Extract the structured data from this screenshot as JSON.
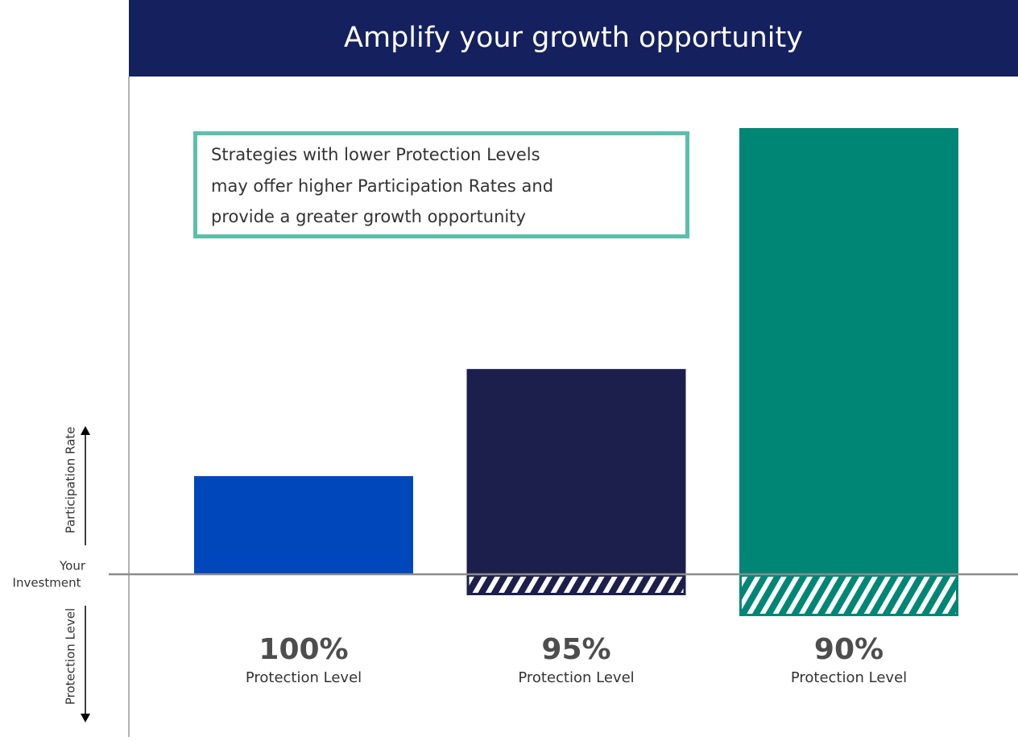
{
  "chart_data": {
    "type": "bar",
    "title": "Amplify your growth opportunity",
    "annotation": [
      "Strategies with lower Protection Levels",
      "may offer higher Participation Rates and",
      "provide a greater growth opportunity"
    ],
    "y_axis_label": "Participation Rate",
    "y_axis_label_down": "Protection Level",
    "baseline_label": [
      "Your",
      "Investment"
    ],
    "values": [
      22,
      46,
      100
    ],
    "ylim": [
      0,
      100
    ],
    "colors": [
      "#0047bb",
      "#1c1f4b",
      "#008675"
    ],
    "protection": {
      "values": [
        100,
        95,
        90
      ],
      "value_labels": [
        "100%",
        "95%",
        "90%"
      ],
      "lim": [
        100,
        90
      ]
    },
    "category_sublabel": "Protection Level"
  }
}
